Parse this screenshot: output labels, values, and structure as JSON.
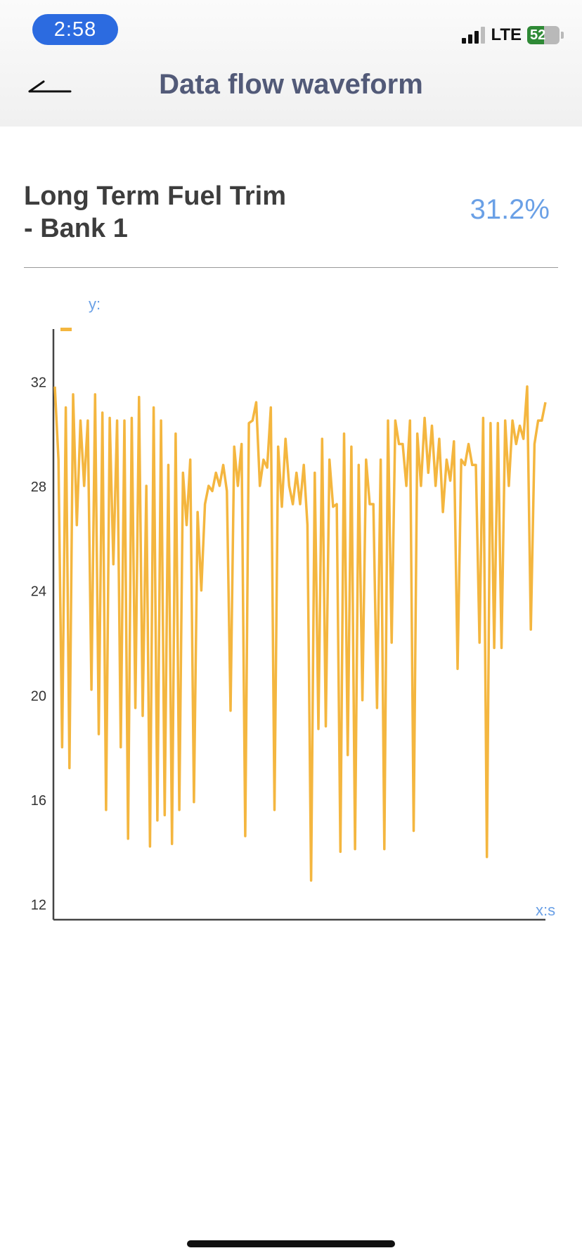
{
  "status_bar": {
    "time": "2:58",
    "network": "LTE",
    "battery_level": "52",
    "battery_fraction": 0.52,
    "signal_bars_active": 3,
    "signal_bars_total": 4,
    "icons": [
      "signal-icon",
      "battery-icon",
      "charging-bolt-icon"
    ]
  },
  "header": {
    "back_icon": "back-arrow-icon",
    "title": "Data flow waveform"
  },
  "metric": {
    "name_line1": "Long Term Fuel Trim",
    "name_line2": "- Bank 1",
    "value": "31.2%"
  },
  "colors": {
    "line": "#f4b63f",
    "axis": "#444444",
    "axis_label": "#6aa0e6",
    "tick_label": "#333333",
    "value": "#6aa0e6",
    "title": "#525a78",
    "time_pill": "#2c6be0"
  },
  "chart_data": {
    "type": "line",
    "title": "",
    "xlabel": "x:s",
    "ylabel": "y:",
    "ylim": [
      11.4,
      34
    ],
    "yticks": [
      12,
      16,
      20,
      24,
      28,
      32
    ],
    "grid": false,
    "legend": "none",
    "series": [
      {
        "values": [
          31.8,
          29.0,
          18.0,
          31.0,
          17.2,
          31.5,
          26.5,
          30.5,
          28.0,
          30.5,
          20.2,
          31.5,
          18.5,
          30.8,
          15.6,
          30.6,
          25.0,
          30.5,
          18.0,
          30.5,
          14.5,
          30.6,
          19.5,
          31.4,
          19.2,
          28.0,
          14.2,
          31.0,
          15.2,
          30.5,
          15.4,
          28.8,
          14.3,
          30.0,
          15.6,
          28.5,
          26.5,
          29.0,
          15.9,
          27.0,
          24.0,
          27.3,
          28.0,
          27.8,
          28.5,
          28.0,
          28.8,
          27.8,
          19.4,
          29.5,
          28.0,
          29.6,
          14.6,
          30.4,
          30.5,
          31.2,
          28.0,
          29.0,
          28.7,
          31.0,
          15.6,
          29.5,
          27.2,
          29.8,
          28.0,
          27.3,
          28.5,
          27.3,
          28.8,
          26.5,
          12.9,
          28.5,
          18.7,
          29.8,
          18.8,
          29.0,
          27.2,
          27.3,
          14.0,
          30.0,
          17.7,
          29.5,
          14.1,
          28.8,
          19.8,
          29.0,
          27.3,
          27.3,
          19.5,
          29.0,
          14.1,
          30.5,
          22.0,
          30.5,
          29.6,
          29.6,
          28.0,
          30.5,
          14.8,
          30.0,
          28.0,
          30.6,
          28.5,
          30.3,
          28.0,
          29.8,
          27.0,
          29.0,
          28.2,
          29.7,
          21.0,
          29.0,
          28.8,
          29.6,
          28.8,
          28.8,
          22.0,
          30.6,
          13.8,
          30.4,
          21.8,
          30.4,
          21.8,
          30.5,
          28.0,
          30.5,
          29.6,
          30.3,
          29.8,
          31.8,
          22.5,
          29.6,
          30.5,
          30.5,
          31.2
        ]
      }
    ]
  }
}
